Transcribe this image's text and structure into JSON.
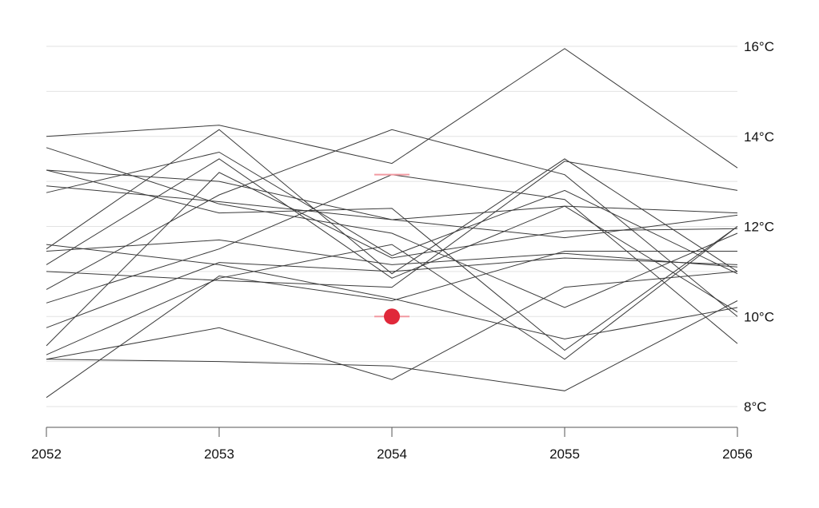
{
  "chart_data": {
    "type": "line",
    "x": [
      2052,
      2053,
      2054,
      2055,
      2056
    ],
    "x_tick_labels": [
      "2052",
      "2053",
      "2054",
      "2055",
      "2056"
    ],
    "ylim": [
      7.6,
      16.4
    ],
    "y_ticks": [
      8,
      10,
      12,
      14,
      16
    ],
    "y_tick_labels": [
      "8°C",
      "10°C",
      "12°C",
      "14°C",
      "16°C"
    ],
    "y_axis_side": "right",
    "grid": true,
    "colors": {
      "series": "#3a3a3a",
      "highlight": "#e0283a",
      "highlight_band": "#f29aa2",
      "grid": "#e2e2e2"
    },
    "series": [
      {
        "values": [
          14.0,
          14.25,
          13.4,
          15.95,
          13.3
        ]
      },
      {
        "values": [
          13.75,
          12.5,
          11.85,
          10.2,
          11.85
        ]
      },
      {
        "values": [
          13.25,
          13.0,
          12.15,
          12.45,
          12.3
        ]
      },
      {
        "values": [
          13.25,
          12.3,
          12.4,
          9.25,
          12.0
        ]
      },
      {
        "values": [
          12.9,
          12.55,
          12.15,
          11.75,
          12.25
        ]
      },
      {
        "values": [
          12.75,
          13.65,
          11.35,
          12.8,
          10.95
        ]
      },
      {
        "values": [
          11.5,
          14.15,
          10.95,
          13.5,
          11.0
        ]
      },
      {
        "values": [
          11.15,
          13.5,
          10.85,
          12.45,
          10.1
        ]
      },
      {
        "values": [
          11.6,
          11.15,
          10.4,
          9.5,
          10.2
        ]
      },
      {
        "values": [
          11.45,
          11.7,
          11.15,
          11.4,
          11.1
        ]
      },
      {
        "values": [
          11.0,
          10.8,
          10.65,
          13.45,
          12.8
        ]
      },
      {
        "values": [
          10.6,
          12.7,
          14.15,
          13.15,
          10.0
        ]
      },
      {
        "values": [
          10.3,
          11.5,
          13.15,
          12.6,
          9.4
        ]
      },
      {
        "values": [
          9.75,
          11.2,
          11.0,
          11.3,
          11.15
        ]
      },
      {
        "values": [
          9.35,
          13.2,
          11.3,
          11.9,
          11.95
        ]
      },
      {
        "values": [
          9.15,
          10.85,
          11.6,
          9.05,
          12.0
        ]
      },
      {
        "values": [
          9.05,
          9.75,
          8.6,
          10.65,
          11.0
        ]
      },
      {
        "values": [
          9.05,
          9.0,
          8.9,
          8.35,
          10.35
        ]
      },
      {
        "values": [
          8.2,
          10.9,
          10.35,
          11.45,
          11.45
        ]
      }
    ],
    "highlight": {
      "x": 2054,
      "y": 10.0,
      "marker_line_y": 13.15
    }
  }
}
